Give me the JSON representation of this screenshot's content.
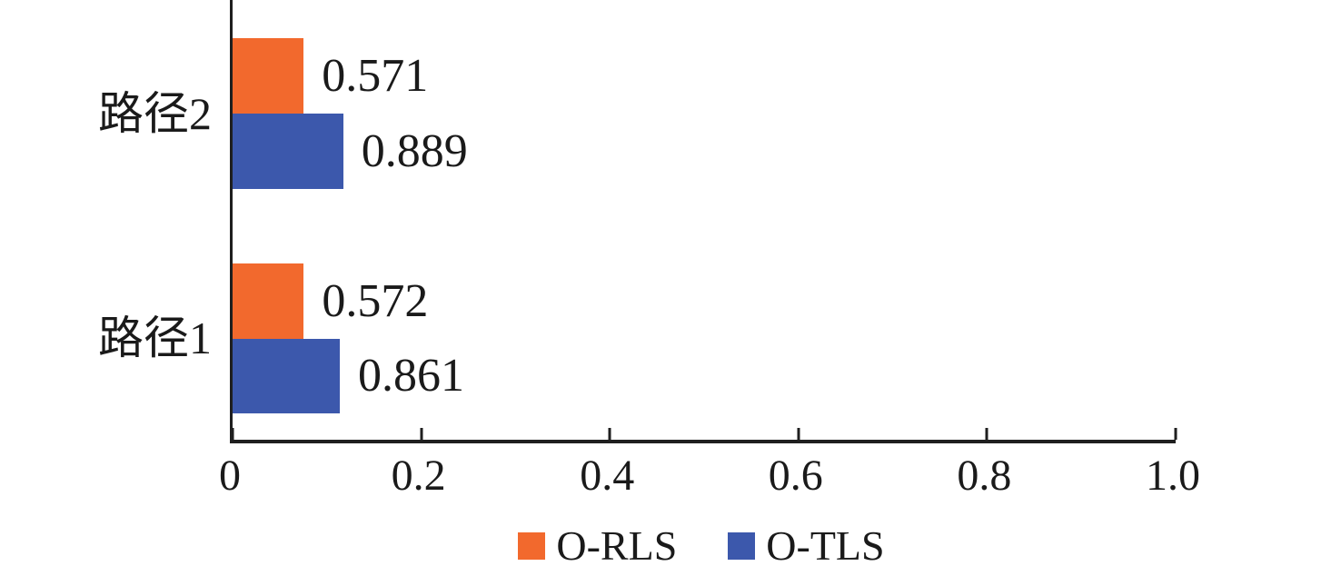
{
  "chart_data": {
    "type": "bar",
    "orientation": "horizontal",
    "title": "",
    "xlabel": "",
    "ylabel": "",
    "xlim": [
      0,
      1.0
    ],
    "x_ticks": [
      "0",
      "0.2",
      "0.4",
      "0.6",
      "0.8",
      "1.0"
    ],
    "grid": false,
    "legend_position": "bottom",
    "series": [
      {
        "name": "O-RLS",
        "color": "#F2692D"
      },
      {
        "name": "O-TLS",
        "color": "#3C58AC"
      }
    ],
    "groups": [
      {
        "category": "路径2",
        "bars": [
          {
            "series": "O-RLS",
            "value": 0.571,
            "label": "0.571"
          },
          {
            "series": "O-TLS",
            "value": 0.889,
            "label": "0.889"
          }
        ]
      },
      {
        "category": "路径1",
        "bars": [
          {
            "series": "O-RLS",
            "value": 0.572,
            "label": "0.572"
          },
          {
            "series": "O-TLS",
            "value": 0.861,
            "label": "0.861"
          }
        ]
      }
    ]
  },
  "legend": {
    "items": [
      {
        "label": "O-RLS",
        "color": "#F2692D"
      },
      {
        "label": "O-TLS",
        "color": "#3C58AC"
      }
    ]
  }
}
